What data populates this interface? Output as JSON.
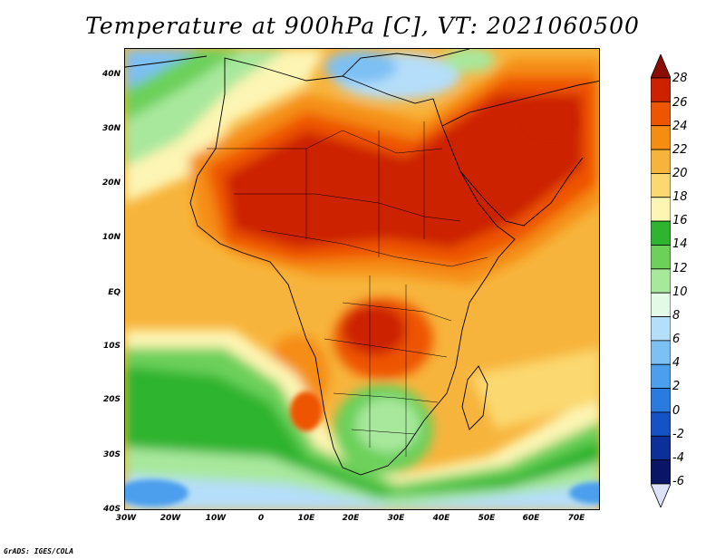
{
  "title": "Temperature at 900hPa [C], VT: 2021060500",
  "credit": "GrADS: IGES/COLA",
  "map": {
    "region": "Africa and Arabian Peninsula",
    "field": "Temperature at 900hPa",
    "units": "C"
  },
  "axes": {
    "lat_ticks": [
      "40N",
      "30N",
      "20N",
      "10N",
      "EQ",
      "10S",
      "20S",
      "30S",
      "40S"
    ],
    "lon_ticks": [
      "30W",
      "20W",
      "10W",
      "0",
      "10E",
      "20E",
      "30E",
      "40E",
      "50E",
      "60E",
      "70E"
    ]
  },
  "colorbar": {
    "labels": [
      "28",
      "26",
      "24",
      "22",
      "20",
      "18",
      "16",
      "14",
      "12",
      "10",
      "8",
      "6",
      "4",
      "2",
      "0",
      "-2",
      "-4",
      "-6"
    ],
    "colors": [
      "#8c0d00",
      "#cc2200",
      "#ee5500",
      "#f58d12",
      "#f7b43c",
      "#fbd870",
      "#fdf5b4",
      "#2fb42f",
      "#6cd05a",
      "#a8e89c",
      "#e3fbe6",
      "#b5defa",
      "#7dc0f4",
      "#4c9fec",
      "#2a7be0",
      "#1552c6",
      "#0c2f9a",
      "#0a1565",
      "#dde2fa"
    ]
  }
}
